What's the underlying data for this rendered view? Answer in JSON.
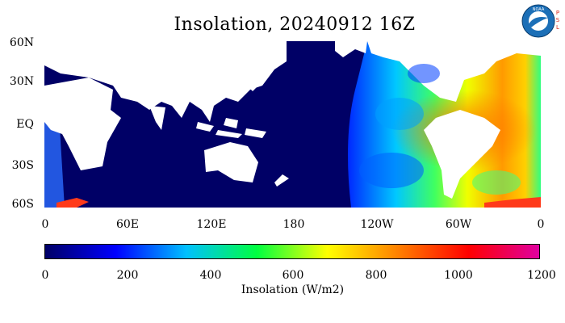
{
  "title": "Insolation, 20240912 16Z",
  "logo": {
    "name": "noaa-logo",
    "side_text": "PSL",
    "colors": {
      "ring": "#1c6fb7",
      "bird": "#ffffff",
      "psl": "#d9261c"
    }
  },
  "map": {
    "lat_labels": [
      "60N",
      "30N",
      "EQ",
      "30S",
      "60S"
    ],
    "lon_labels": [
      "0",
      "60E",
      "120E",
      "180",
      "120W",
      "60W",
      "0"
    ],
    "lat_range": [
      -60,
      60
    ],
    "lon_range": [
      0,
      360
    ],
    "land_color": "#ffffff",
    "night_color": "#000066"
  },
  "colorbar": {
    "labels": [
      "0",
      "200",
      "400",
      "600",
      "800",
      "1000",
      "1200"
    ],
    "range": [
      0,
      1200
    ],
    "title": "Insolation (W/m2)",
    "stops": [
      "#000066",
      "#0000ff",
      "#00c0ff",
      "#00ff40",
      "#ffff00",
      "#ff8000",
      "#ff0000",
      "#e000a0"
    ]
  }
}
